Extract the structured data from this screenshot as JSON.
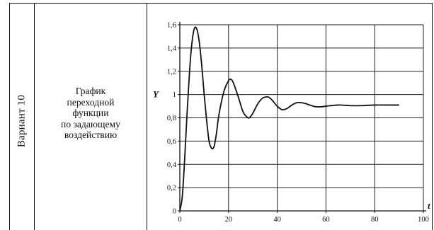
{
  "table": {
    "variant_label": "Вариант 10",
    "description_lines": [
      "График",
      "переходной",
      "функции",
      "по задающему",
      "воздействию"
    ]
  },
  "chart_data": {
    "type": "line",
    "xlabel": "t",
    "ylabel": "Y",
    "xlim": [
      0,
      100
    ],
    "ylim": [
      0,
      1.6
    ],
    "x_ticks": [
      0,
      20,
      40,
      60,
      80,
      100
    ],
    "x_tick_labels": [
      "0",
      "20",
      "40",
      "60",
      "80",
      "100"
    ],
    "y_ticks": [
      0,
      0.2,
      0.4,
      0.6,
      0.8,
      1,
      1.2,
      1.4,
      1.6
    ],
    "y_tick_labels": [
      "0",
      "0,2",
      "0,4",
      "0,6",
      "0,8",
      "1",
      "1,2",
      "1,4",
      "1,6"
    ],
    "grid": true,
    "series": [
      {
        "x": [
          0,
          1,
          2,
          3,
          4,
          5,
          6,
          7,
          8,
          9,
          10,
          11,
          12,
          13,
          14,
          15,
          16,
          18,
          20,
          21,
          22,
          24,
          26,
          28,
          29,
          30,
          32,
          34,
          36,
          37,
          38,
          40,
          42,
          44,
          46,
          48,
          50,
          52,
          54,
          56,
          58,
          60,
          65,
          70,
          75,
          80,
          85,
          90
        ],
        "y": [
          0,
          0.12,
          0.45,
          0.85,
          1.2,
          1.45,
          1.57,
          1.56,
          1.45,
          1.25,
          1.0,
          0.78,
          0.6,
          0.54,
          0.55,
          0.66,
          0.82,
          1.02,
          1.12,
          1.13,
          1.1,
          0.98,
          0.85,
          0.8,
          0.81,
          0.84,
          0.92,
          0.97,
          0.98,
          0.97,
          0.95,
          0.9,
          0.87,
          0.88,
          0.91,
          0.93,
          0.93,
          0.92,
          0.905,
          0.895,
          0.895,
          0.9,
          0.91,
          0.905,
          0.905,
          0.91,
          0.91,
          0.91
        ],
        "color": "#111111"
      }
    ]
  }
}
